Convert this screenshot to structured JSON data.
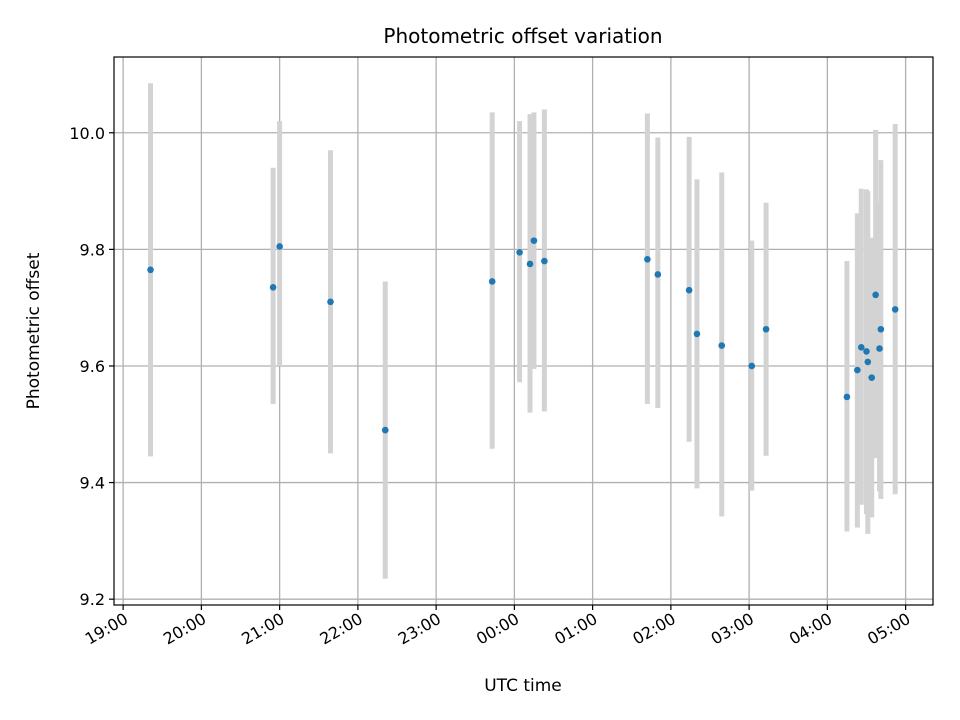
{
  "chart_data": {
    "type": "scatter",
    "title": "Photometric offset variation",
    "xlabel": "UTC time",
    "ylabel": "Photometric offset",
    "xlim": [
      "18:53",
      "05:21"
    ],
    "ylim": [
      9.19,
      10.13
    ],
    "grid": true,
    "x_ticks": [
      "19:00",
      "20:00",
      "21:00",
      "22:00",
      "23:00",
      "00:00",
      "01:00",
      "02:00",
      "03:00",
      "04:00",
      "05:00"
    ],
    "y_ticks": [
      "9.2",
      "9.4",
      "9.6",
      "9.8",
      "10.0"
    ],
    "colors": {
      "points": "#1f77b4",
      "error_bars": "#d3d3d3",
      "grid": "#b0b0b0"
    },
    "points": [
      {
        "x": "19:21",
        "y": 9.765,
        "lo": 9.445,
        "hi": 10.085
      },
      {
        "x": "20:55",
        "y": 9.735,
        "lo": 9.535,
        "hi": 9.94
      },
      {
        "x": "21:00",
        "y": 9.805,
        "lo": 9.6,
        "hi": 10.02
      },
      {
        "x": "21:39",
        "y": 9.71,
        "lo": 9.45,
        "hi": 9.97
      },
      {
        "x": "22:21",
        "y": 9.49,
        "lo": 9.235,
        "hi": 9.745
      },
      {
        "x": "23:43",
        "y": 9.745,
        "lo": 9.458,
        "hi": 10.035
      },
      {
        "x": "00:04",
        "y": 9.795,
        "lo": 9.572,
        "hi": 10.02
      },
      {
        "x": "00:12",
        "y": 9.775,
        "lo": 9.52,
        "hi": 10.032
      },
      {
        "x": "00:15",
        "y": 9.815,
        "lo": 9.595,
        "hi": 10.035
      },
      {
        "x": "00:23",
        "y": 9.78,
        "lo": 9.522,
        "hi": 10.04
      },
      {
        "x": "01:42",
        "y": 9.783,
        "lo": 9.535,
        "hi": 10.033
      },
      {
        "x": "01:50",
        "y": 9.757,
        "lo": 9.528,
        "hi": 9.992
      },
      {
        "x": "02:14",
        "y": 9.73,
        "lo": 9.47,
        "hi": 9.993
      },
      {
        "x": "02:20",
        "y": 9.655,
        "lo": 9.39,
        "hi": 9.92
      },
      {
        "x": "02:39",
        "y": 9.635,
        "lo": 9.342,
        "hi": 9.932
      },
      {
        "x": "03:02",
        "y": 9.6,
        "lo": 9.386,
        "hi": 9.815
      },
      {
        "x": "03:13",
        "y": 9.663,
        "lo": 9.446,
        "hi": 9.88
      },
      {
        "x": "04:15",
        "y": 9.547,
        "lo": 9.316,
        "hi": 9.78
      },
      {
        "x": "04:23",
        "y": 9.593,
        "lo": 9.323,
        "hi": 9.862
      },
      {
        "x": "04:26",
        "y": 9.632,
        "lo": 9.362,
        "hi": 9.904
      },
      {
        "x": "04:30",
        "y": 9.625,
        "lo": 9.346,
        "hi": 9.903
      },
      {
        "x": "04:31",
        "y": 9.607,
        "lo": 9.312,
        "hi": 9.9
      },
      {
        "x": "04:34",
        "y": 9.58,
        "lo": 9.34,
        "hi": 9.82
      },
      {
        "x": "04:37",
        "y": 9.722,
        "lo": 9.442,
        "hi": 10.005
      },
      {
        "x": "04:40",
        "y": 9.63,
        "lo": 9.385,
        "hi": 9.88
      },
      {
        "x": "04:41",
        "y": 9.663,
        "lo": 9.372,
        "hi": 9.953
      },
      {
        "x": "04:52",
        "y": 9.697,
        "lo": 9.38,
        "hi": 10.015
      }
    ]
  }
}
